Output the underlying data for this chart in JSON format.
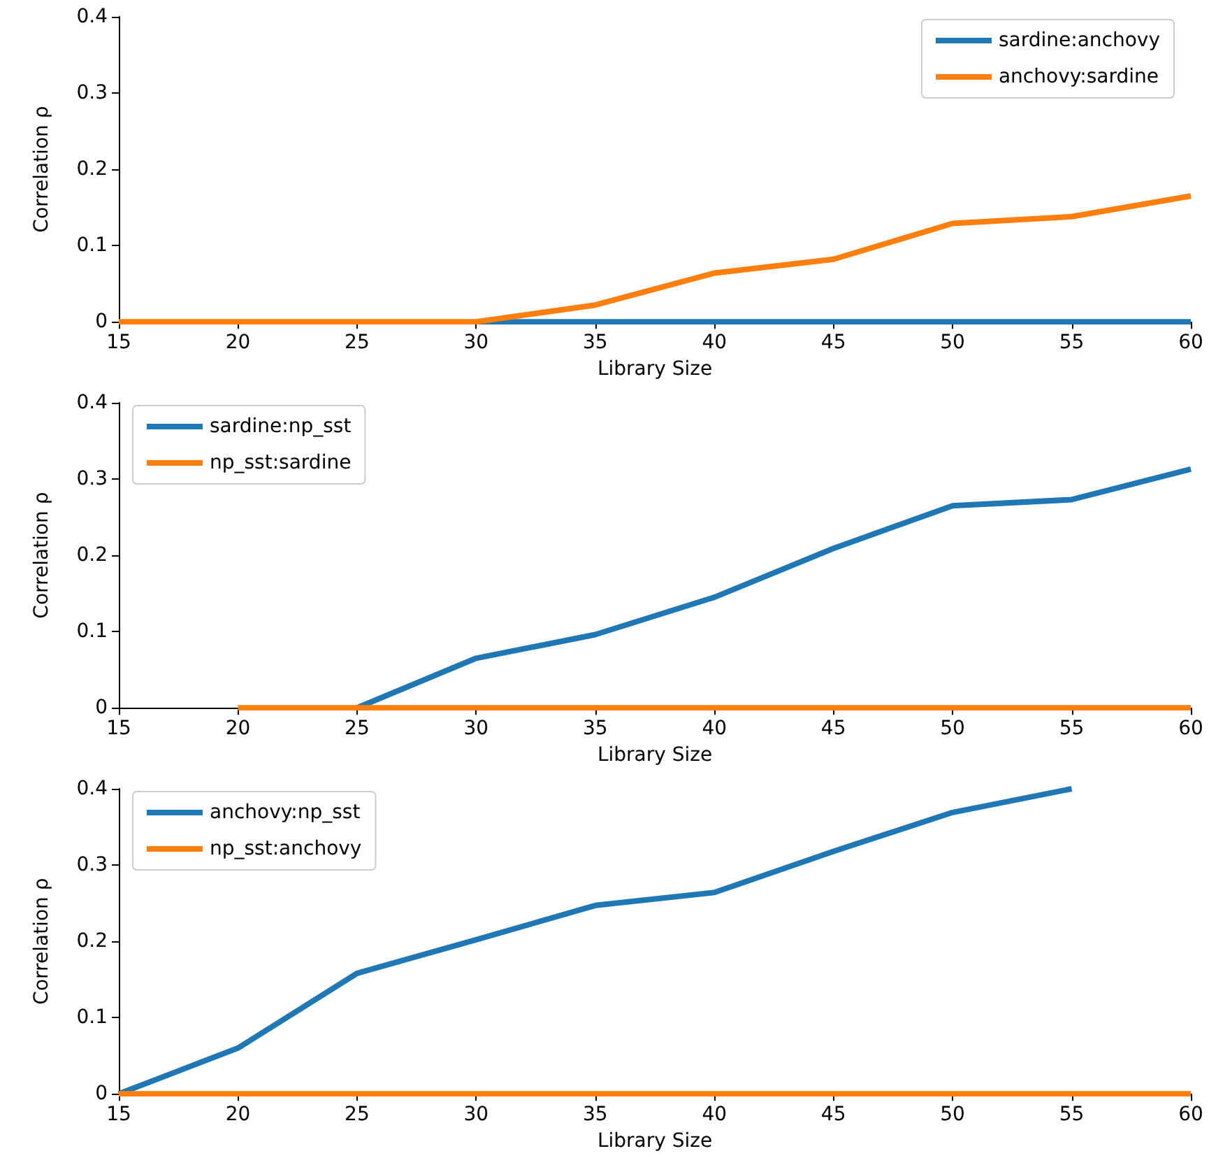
{
  "chart_data": [
    {
      "type": "line",
      "xlabel": "Library Size",
      "ylabel": "Correlation ρ",
      "x": [
        15,
        20,
        25,
        30,
        35,
        40,
        45,
        50,
        55,
        60
      ],
      "xlim": [
        15,
        60
      ],
      "xticks": [
        15,
        20,
        25,
        30,
        35,
        40,
        45,
        50,
        55,
        60
      ],
      "ylim": [
        0,
        0.4
      ],
      "yticks": [
        0,
        0.1,
        0.2,
        0.3,
        0.4
      ],
      "grid": false,
      "legend": "top right",
      "marker": "none",
      "line_style": "solid",
      "series": [
        {
          "name": "sardine:anchovy",
          "color": "#1f77b4",
          "values": [
            null,
            null,
            null,
            0,
            0,
            0,
            0,
            0,
            0,
            0
          ]
        },
        {
          "name": "anchovy:sardine",
          "color": "#ff7f0e",
          "values": [
            0,
            0,
            0,
            0,
            0.022,
            0.064,
            0.082,
            0.129,
            0.138,
            0.165
          ]
        }
      ]
    },
    {
      "type": "line",
      "xlabel": "Library Size",
      "ylabel": "Correlation ρ",
      "xlim": [
        15,
        60
      ],
      "xticks": [
        15,
        20,
        25,
        30,
        35,
        40,
        45,
        50,
        55,
        60
      ],
      "ylim": [
        0,
        0.4
      ],
      "yticks": [
        0,
        0.1,
        0.2,
        0.3,
        0.4
      ],
      "grid": false,
      "legend": "top left",
      "marker": "none",
      "line_style": "solid",
      "series": [
        {
          "name": "sardine:np_sst",
          "color": "#1f77b4",
          "x": [
            25,
            30,
            35,
            40,
            45,
            50,
            55,
            60
          ],
          "values": [
            0,
            0.065,
            0.096,
            0.145,
            0.209,
            0.265,
            0.273,
            0.313
          ]
        },
        {
          "name": "np_sst:sardine",
          "color": "#ff7f0e",
          "x": [
            20,
            25,
            30,
            35,
            40,
            45,
            50,
            55,
            60
          ],
          "values": [
            0,
            0,
            0,
            0,
            0,
            0,
            0,
            0,
            0
          ]
        }
      ]
    },
    {
      "type": "line",
      "xlabel": "Library Size",
      "ylabel": "Correlation ρ",
      "x": [
        15,
        20,
        25,
        30,
        35,
        40,
        45,
        50,
        55,
        60
      ],
      "xlim": [
        15,
        60
      ],
      "xticks": [
        15,
        20,
        25,
        30,
        35,
        40,
        45,
        50,
        55,
        60
      ],
      "ylim": [
        0,
        0.4
      ],
      "yticks": [
        0,
        0.1,
        0.2,
        0.3,
        0.4
      ],
      "grid": false,
      "legend": "top left",
      "marker": "none",
      "line_style": "solid",
      "series": [
        {
          "name": "anchovy:np_sst",
          "color": "#1f77b4",
          "values": [
            0,
            0.06,
            0.158,
            0.202,
            0.247,
            0.264,
            0.318,
            0.369,
            0.4,
            null
          ]
        },
        {
          "name": "np_sst:anchovy",
          "color": "#ff7f0e",
          "values": [
            0,
            0,
            0,
            0,
            0,
            0,
            0,
            0,
            0,
            0
          ]
        }
      ]
    }
  ]
}
